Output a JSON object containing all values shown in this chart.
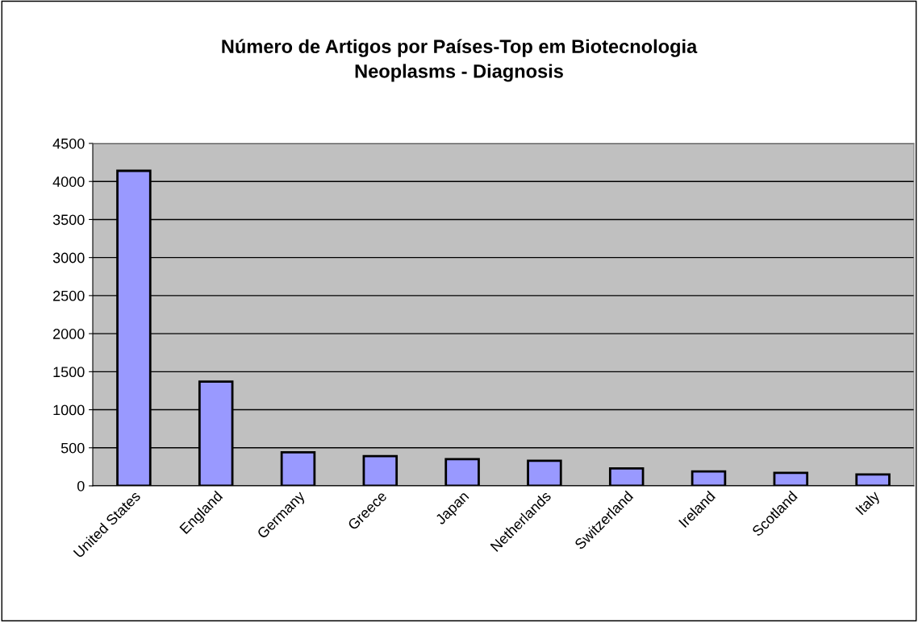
{
  "chart_data": {
    "type": "bar",
    "title": "Número de Artigos por Países-Top em Biotecnologia\nNeoplasms - Diagnosis",
    "categories": [
      "United States",
      "England",
      "Germany",
      "Greece",
      "Japan",
      "Netherlands",
      "Switzerland",
      "Ireland",
      "Scotland",
      "Italy"
    ],
    "values": [
      4140,
      1370,
      440,
      390,
      350,
      330,
      230,
      190,
      170,
      150
    ],
    "color": "#9999ff",
    "ylim": [
      0,
      4500
    ],
    "yticks": [
      0,
      500,
      1000,
      1500,
      2000,
      2500,
      3000,
      3500,
      4000,
      4500
    ],
    "grid": "y"
  }
}
